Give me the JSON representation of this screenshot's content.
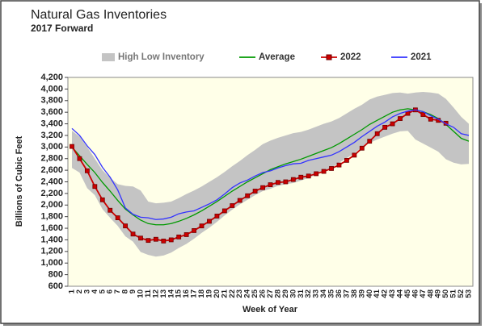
{
  "chart_data": {
    "type": "line",
    "title": "Natural Gas Inventories",
    "subtitle": "2017 Forward",
    "ylabel": "Billions of Cubic Feet",
    "xlabel": "Week of Year",
    "categories": [
      "1",
      "2",
      "3",
      "4",
      "5",
      "6",
      "7",
      "8",
      "9",
      "10",
      "11",
      "12",
      "13",
      "14",
      "15",
      "16",
      "17",
      "18",
      "19",
      "20",
      "21",
      "22",
      "23",
      "24",
      "25",
      "26",
      "27",
      "28",
      "29",
      "30",
      "31",
      "32",
      "33",
      "34",
      "35",
      "36",
      "37",
      "38",
      "39",
      "40",
      "41",
      "42",
      "43",
      "44",
      "45",
      "46",
      "47",
      "48",
      "49",
      "50",
      "51",
      "52",
      "53"
    ],
    "ylim": [
      600,
      4200
    ],
    "yticks": [
      {
        "value": 600,
        "label": "600"
      },
      {
        "value": 800,
        "label": "800"
      },
      {
        "value": 1000,
        "label": "1,000"
      },
      {
        "value": 1200,
        "label": "1,200"
      },
      {
        "value": 1400,
        "label": "1,400"
      },
      {
        "value": 1600,
        "label": "1,600"
      },
      {
        "value": 1800,
        "label": "1,800"
      },
      {
        "value": 2000,
        "label": "2,000"
      },
      {
        "value": 2200,
        "label": "2,200"
      },
      {
        "value": 2400,
        "label": "2,400"
      },
      {
        "value": 2600,
        "label": "2,600"
      },
      {
        "value": 2800,
        "label": "2,800"
      },
      {
        "value": 3000,
        "label": "3,000"
      },
      {
        "value": 3200,
        "label": "3,200"
      },
      {
        "value": 3400,
        "label": "3,400"
      },
      {
        "value": 3600,
        "label": "3,600"
      },
      {
        "value": 3800,
        "label": "3,800"
      },
      {
        "value": 4000,
        "label": "4,000"
      },
      {
        "value": 4200,
        "label": "4,200"
      }
    ],
    "band": {
      "name": "High Low Inventory",
      "color": "#c4c4c4",
      "high": [
        3280,
        3180,
        3000,
        2800,
        2600,
        2470,
        2360,
        2330,
        2320,
        2250,
        2060,
        2030,
        2040,
        2060,
        2120,
        2190,
        2250,
        2320,
        2400,
        2480,
        2570,
        2670,
        2760,
        2860,
        2950,
        3050,
        3110,
        3160,
        3200,
        3240,
        3260,
        3300,
        3350,
        3400,
        3440,
        3500,
        3580,
        3660,
        3730,
        3820,
        3870,
        3900,
        3930,
        3940,
        3920,
        3940,
        3950,
        3940,
        3920,
        3830,
        3680,
        3520,
        3400
      ],
      "low": [
        2640,
        2560,
        2290,
        2170,
        1930,
        1780,
        1640,
        1460,
        1370,
        1190,
        1140,
        1110,
        1130,
        1180,
        1260,
        1330,
        1420,
        1520,
        1610,
        1710,
        1820,
        1920,
        2010,
        2090,
        2170,
        2240,
        2280,
        2330,
        2360,
        2380,
        2420,
        2470,
        2520,
        2580,
        2640,
        2730,
        2810,
        2890,
        3000,
        3070,
        3130,
        3180,
        3230,
        3270,
        3280,
        3130,
        3060,
        2990,
        2920,
        2790,
        2730,
        2700,
        2710
      ]
    },
    "series": [
      {
        "name": "Average",
        "color": "#009900",
        "values": [
          3000,
          2850,
          2700,
          2560,
          2390,
          2240,
          2080,
          1930,
          1830,
          1740,
          1680,
          1660,
          1660,
          1680,
          1720,
          1770,
          1830,
          1900,
          1980,
          2060,
          2150,
          2240,
          2320,
          2400,
          2470,
          2540,
          2610,
          2660,
          2710,
          2750,
          2790,
          2840,
          2890,
          2940,
          2990,
          3060,
          3140,
          3220,
          3300,
          3390,
          3460,
          3530,
          3600,
          3640,
          3660,
          3640,
          3610,
          3560,
          3490,
          3390,
          3270,
          3150,
          3100
        ]
      },
      {
        "name": "2022",
        "color": "#cc0000",
        "marker": "square",
        "values": [
          3010,
          2800,
          2590,
          2320,
          2090,
          1910,
          1780,
          1640,
          1500,
          1430,
          1390,
          1410,
          1380,
          1400,
          1450,
          1490,
          1560,
          1640,
          1720,
          1810,
          1900,
          1990,
          2080,
          2160,
          2240,
          2300,
          2350,
          2390,
          2400,
          2440,
          2480,
          2500,
          2540,
          2580,
          2630,
          2690,
          2770,
          2860,
          2980,
          3100,
          3230,
          3340,
          3400,
          3490,
          3580,
          3640,
          3560,
          3480,
          3460,
          3410,
          null,
          null,
          null
        ]
      },
      {
        "name": "2021",
        "color": "#3333ff",
        "values": [
          3320,
          3200,
          3020,
          2870,
          2650,
          2480,
          2260,
          1950,
          1840,
          1790,
          1780,
          1750,
          1760,
          1790,
          1850,
          1880,
          1900,
          1960,
          2020,
          2090,
          2190,
          2300,
          2380,
          2430,
          2500,
          2560,
          2590,
          2640,
          2680,
          2710,
          2720,
          2770,
          2800,
          2830,
          2860,
          2920,
          3000,
          3080,
          3180,
          3270,
          3360,
          3430,
          3520,
          3580,
          3620,
          3640,
          3610,
          3540,
          3480,
          3400,
          3340,
          3230,
          3200
        ]
      }
    ]
  }
}
